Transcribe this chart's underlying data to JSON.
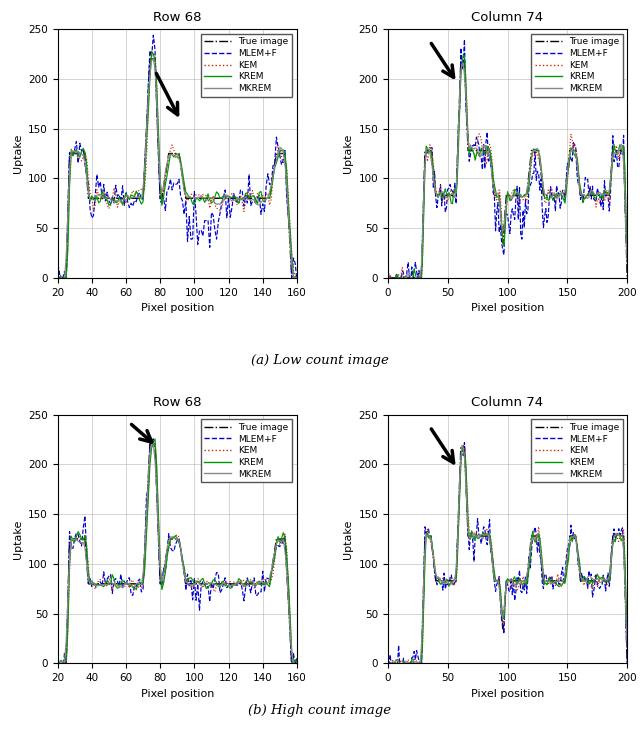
{
  "fig_width": 6.4,
  "fig_height": 7.29,
  "dpi": 100,
  "title_row68": "Row 68",
  "title_col74": "Column 74",
  "subtitle_low": "(a) Low count image",
  "subtitle_high": "(b) High count image",
  "xlabel": "Pixel position",
  "ylabel": "Uptake",
  "legend_labels": [
    "True image",
    "MLEM+F",
    "KEM",
    "KREM",
    "MKREM"
  ],
  "color_true": "#000000",
  "color_mlem": "#0000CC",
  "color_kem": "#CC2200",
  "color_krem": "#009900",
  "color_mkrem": "#888888",
  "row68_xlim": [
    20,
    160
  ],
  "row68_xticks": [
    20,
    40,
    60,
    80,
    100,
    120,
    140,
    160
  ],
  "col74_xlim": [
    0,
    200
  ],
  "col74_xticks": [
    0,
    50,
    100,
    150,
    200
  ],
  "ylim": [
    0,
    250
  ],
  "yticks": [
    0,
    50,
    100,
    150,
    200,
    250
  ]
}
